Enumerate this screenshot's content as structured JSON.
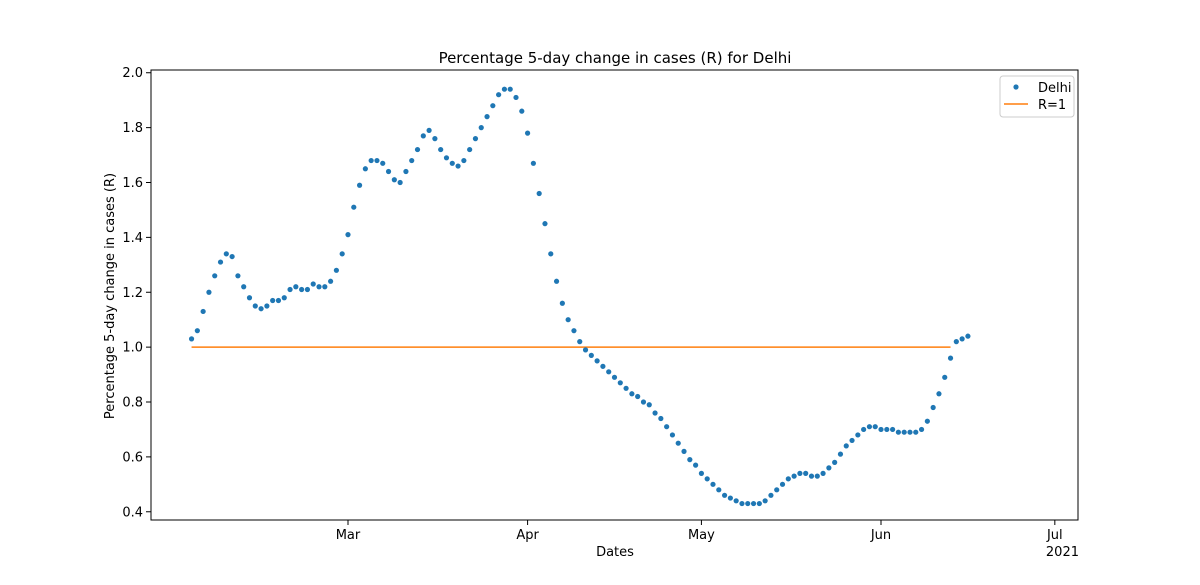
{
  "chart_data": {
    "type": "scatter",
    "title": "Percentage 5-day change in cases (R) for Delhi",
    "xlabel": "Dates",
    "ylabel": "Percentage 5-day change in cases (R)",
    "ylim": [
      0.37,
      2.01
    ],
    "xlim_day_of_year": [
      26,
      186
    ],
    "x_start_day_of_year": 33,
    "x_step_days": 1,
    "x_ticks": [
      {
        "day": 60,
        "label": "Mar"
      },
      {
        "day": 91,
        "label": "Apr"
      },
      {
        "day": 121,
        "label": "May"
      },
      {
        "day": 152,
        "label": "Jun"
      },
      {
        "day": 182,
        "label": "Jul"
      }
    ],
    "x_offset_label": "2021",
    "y_ticks": [
      0.4,
      0.6,
      0.8,
      1.0,
      1.2,
      1.4,
      1.6,
      1.8,
      2.0
    ],
    "y_tick_labels": [
      "0.4",
      "0.6",
      "0.8",
      "1.0",
      "1.2",
      "1.4",
      "1.6",
      "1.8",
      "2.0"
    ],
    "grid": false,
    "legend_position": "top-right",
    "series": [
      {
        "name": "Delhi",
        "kind": "scatter",
        "color": "#1f77b4",
        "values": [
          1.03,
          1.06,
          1.13,
          1.2,
          1.26,
          1.31,
          1.34,
          1.33,
          1.26,
          1.22,
          1.18,
          1.15,
          1.14,
          1.15,
          1.17,
          1.17,
          1.18,
          1.21,
          1.22,
          1.21,
          1.21,
          1.23,
          1.22,
          1.22,
          1.24,
          1.28,
          1.34,
          1.41,
          1.51,
          1.59,
          1.65,
          1.68,
          1.68,
          1.67,
          1.64,
          1.61,
          1.6,
          1.64,
          1.68,
          1.72,
          1.77,
          1.79,
          1.76,
          1.72,
          1.69,
          1.67,
          1.66,
          1.68,
          1.72,
          1.76,
          1.8,
          1.84,
          1.88,
          1.92,
          1.94,
          1.94,
          1.91,
          1.86,
          1.78,
          1.67,
          1.56,
          1.45,
          1.34,
          1.24,
          1.16,
          1.1,
          1.06,
          1.02,
          0.99,
          0.97,
          0.95,
          0.93,
          0.91,
          0.89,
          0.87,
          0.85,
          0.83,
          0.82,
          0.8,
          0.79,
          0.76,
          0.74,
          0.71,
          0.68,
          0.65,
          0.62,
          0.59,
          0.57,
          0.54,
          0.52,
          0.5,
          0.48,
          0.46,
          0.45,
          0.44,
          0.43,
          0.43,
          0.43,
          0.43,
          0.44,
          0.46,
          0.48,
          0.5,
          0.52,
          0.53,
          0.54,
          0.54,
          0.53,
          0.53,
          0.54,
          0.56,
          0.58,
          0.61,
          0.64,
          0.66,
          0.68,
          0.7,
          0.71,
          0.71,
          0.7,
          0.7,
          0.7,
          0.69,
          0.69,
          0.69,
          0.69,
          0.7,
          0.73,
          0.78,
          0.83,
          0.89,
          0.96,
          1.02,
          1.03,
          1.04
        ]
      },
      {
        "name": "R=1",
        "kind": "line",
        "color": "#ff7f0e",
        "x_days": [
          33,
          164
        ],
        "values": [
          1.0,
          1.0
        ]
      }
    ]
  }
}
